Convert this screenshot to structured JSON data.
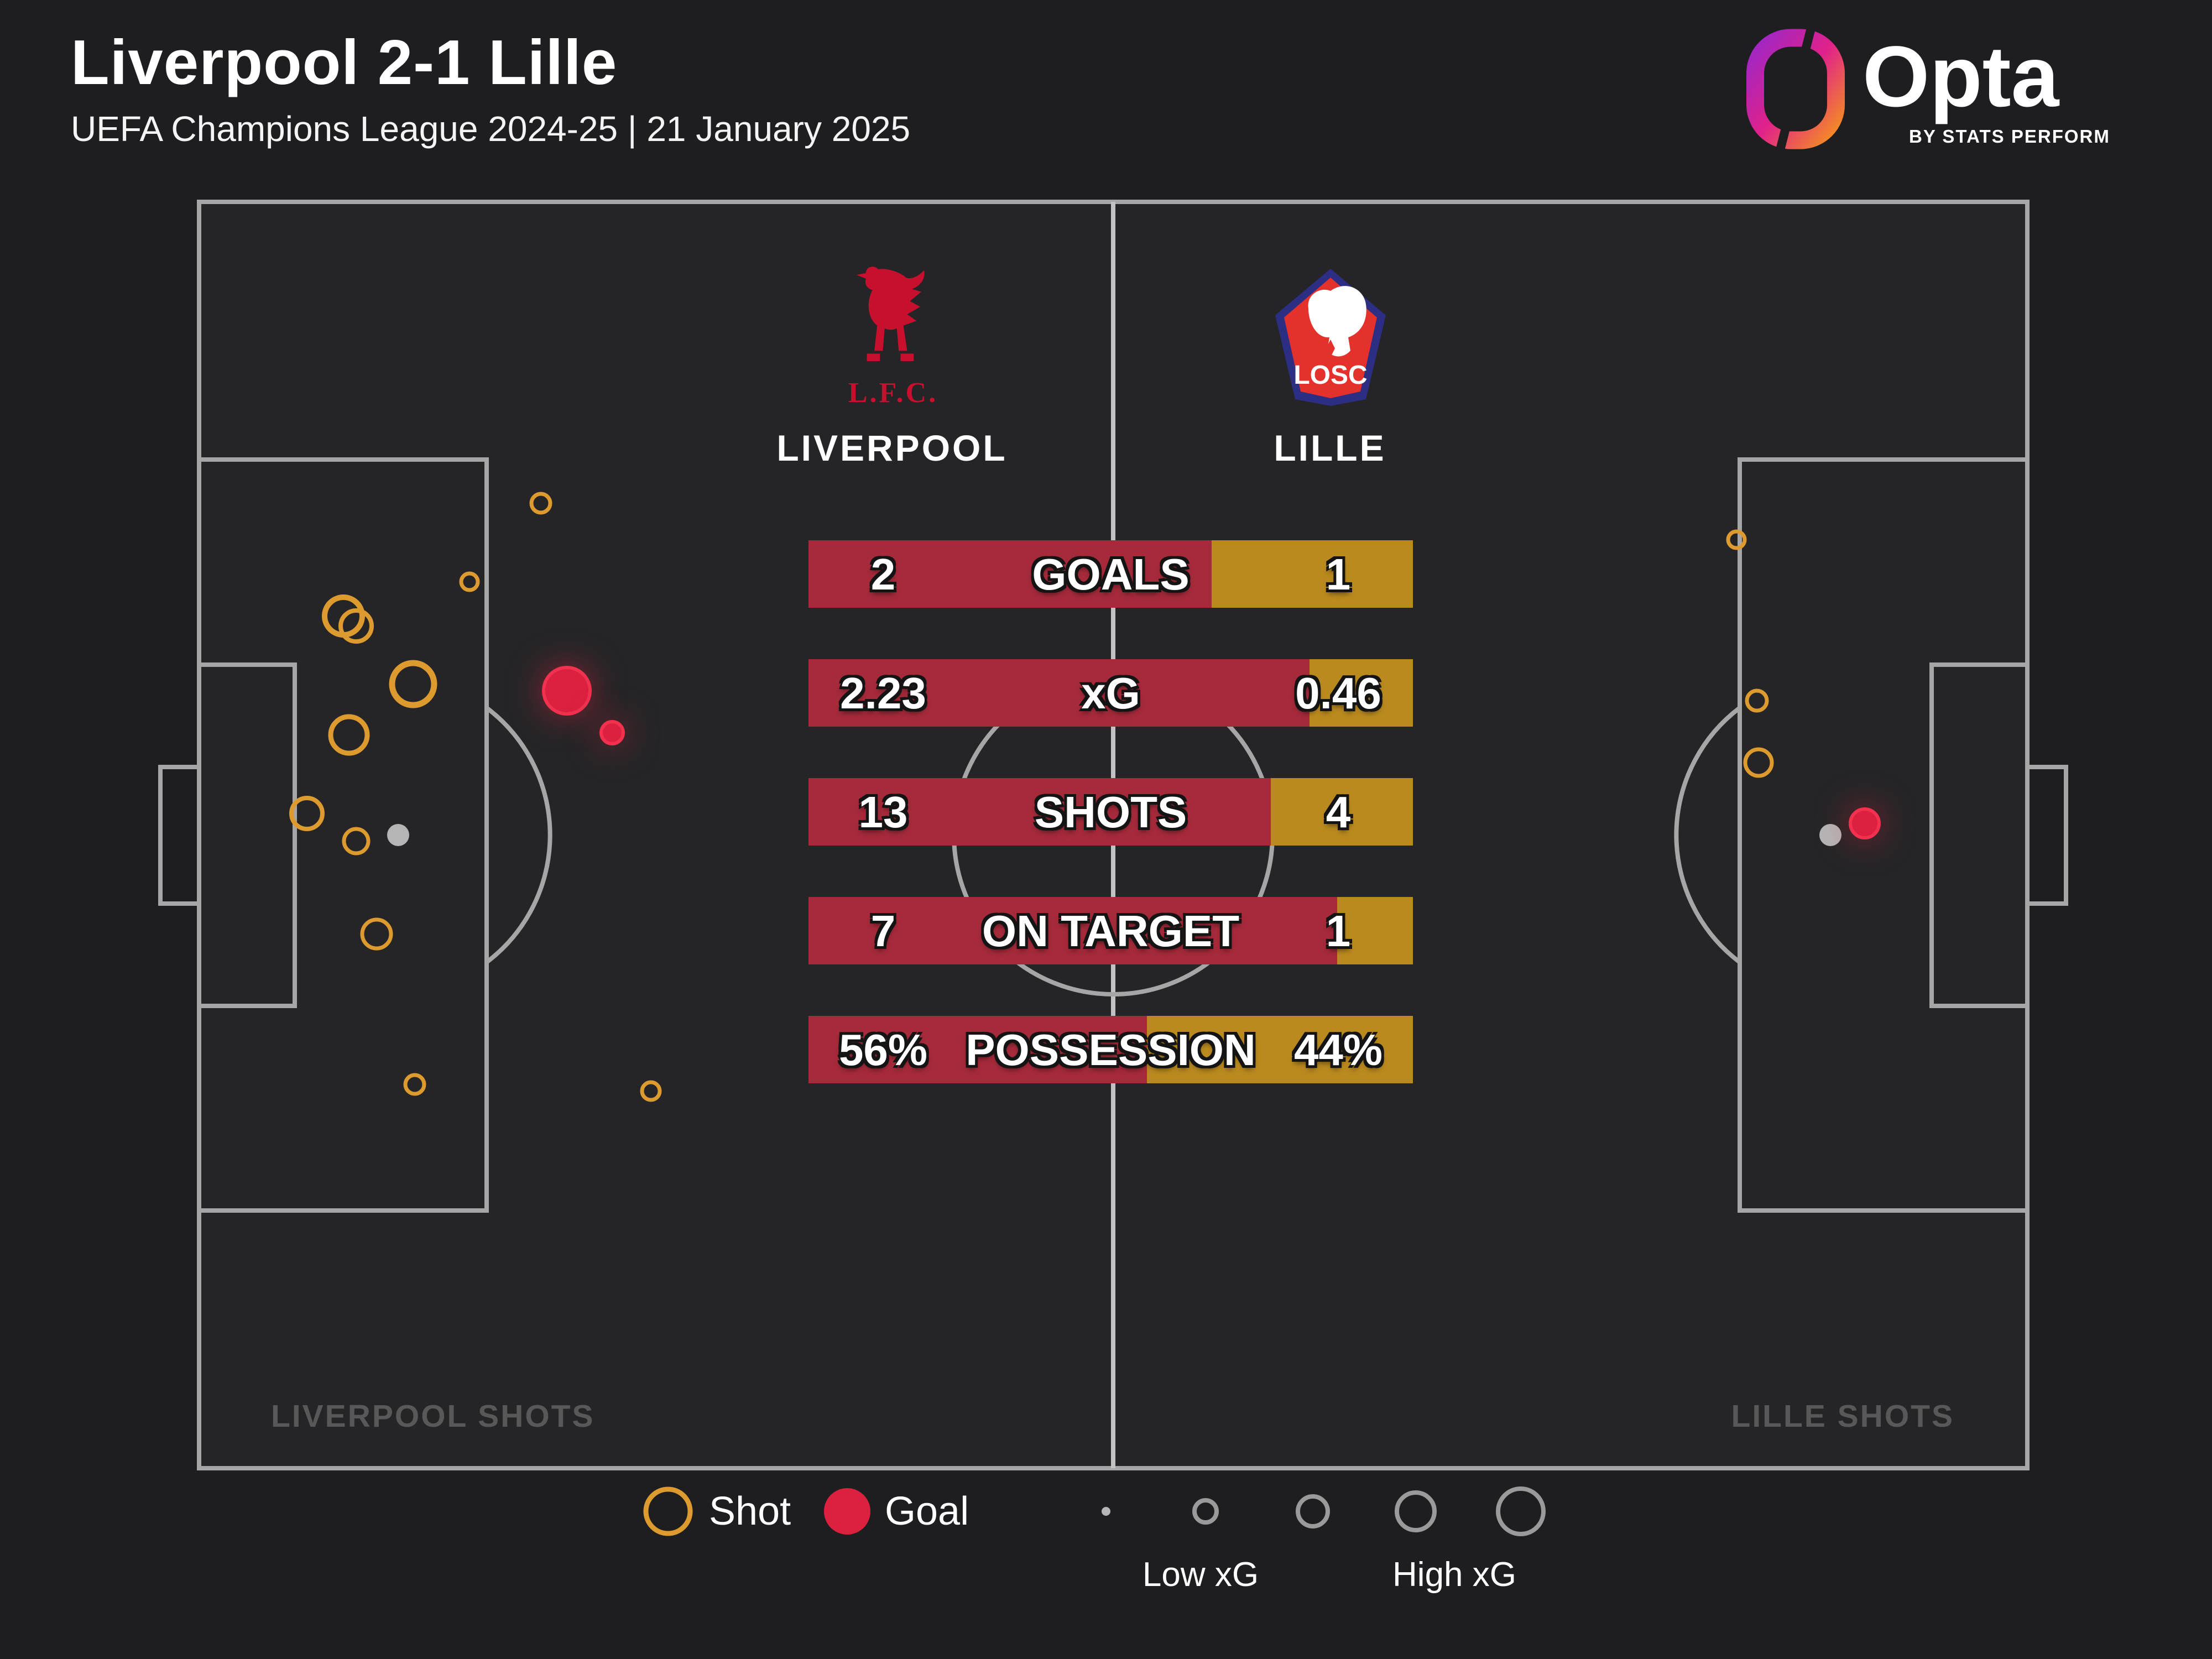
{
  "header": {
    "title": "Liverpool 2-1 Lille",
    "subtitle": "UEFA Champions League 2024-25 | 21 January 2025"
  },
  "brand": {
    "name": "Opta",
    "byline": "BY STATS PERFORM"
  },
  "teams": {
    "home": {
      "name": "LIVERPOOL",
      "crest_caption": "L.F.C."
    },
    "away": {
      "name": "LILLE",
      "crest_caption": "LOSC"
    }
  },
  "pitch_labels": {
    "left": "LIVERPOOL SHOTS",
    "right": "LILLE SHOTS"
  },
  "legend": {
    "shot_label": "Shot",
    "goal_label": "Goal",
    "low_label": "Low xG",
    "high_label": "High xG",
    "scale_radii": [
      8,
      20,
      27,
      34,
      41
    ]
  },
  "colors": {
    "home_bar": "#A52A3A",
    "away_bar": "#BA8A1E",
    "shot_ring": "#DD9B2F",
    "goal_fill": "#DC2140",
    "goal_rim": "#F1314E",
    "pitch_line": "#A6A6A6",
    "halfway_line": "#C2C2C2",
    "penalty_spot": "#B5B5B5",
    "legend_ring": "#9A9A9A",
    "muted_label": "#585858",
    "lfc_red": "#C8102E",
    "losc_red": "#E4312B",
    "losc_navy": "#2B2E83"
  },
  "chart_data": {
    "type": "shot-map",
    "title": "Liverpool 2-1 Lille",
    "competition": "UEFA Champions League 2024-25",
    "date": "21 January 2025",
    "teams": [
      "Liverpool",
      "Lille"
    ],
    "stats": [
      {
        "label": "GOALS",
        "home": "2",
        "away": "1",
        "home_value": 2,
        "away_value": 1
      },
      {
        "label": "xG",
        "home": "2.23",
        "away": "0.46",
        "home_value": 2.23,
        "away_value": 0.46
      },
      {
        "label": "SHOTS",
        "home": "13",
        "away": "4",
        "home_value": 13,
        "away_value": 4
      },
      {
        "label": "ON TARGET",
        "home": "7",
        "away": "1",
        "home_value": 7,
        "away_value": 1
      },
      {
        "label": "POSSESSION",
        "home": "56%",
        "away": "44%",
        "home_value": 56,
        "away_value": 44
      }
    ],
    "shots": {
      "liverpool": [
        {
          "x": 0.187,
          "y": 0.238,
          "r": 17,
          "goal": false
        },
        {
          "x": 0.148,
          "y": 0.3,
          "r": 15,
          "goal": false
        },
        {
          "x": 0.079,
          "y": 0.327,
          "r": 34,
          "goal": false
        },
        {
          "x": 0.086,
          "y": 0.335,
          "r": 28,
          "goal": false
        },
        {
          "x": 0.117,
          "y": 0.381,
          "r": 38,
          "goal": false
        },
        {
          "x": 0.082,
          "y": 0.421,
          "r": 33,
          "goal": false
        },
        {
          "x": 0.059,
          "y": 0.483,
          "r": 28,
          "goal": false
        },
        {
          "x": 0.086,
          "y": 0.505,
          "r": 22,
          "goal": false
        },
        {
          "x": 0.097,
          "y": 0.578,
          "r": 26,
          "goal": false
        },
        {
          "x": 0.118,
          "y": 0.697,
          "r": 17,
          "goal": false
        },
        {
          "x": 0.247,
          "y": 0.702,
          "r": 16,
          "goal": false
        },
        {
          "x": 0.201,
          "y": 0.386,
          "r": 42,
          "goal": true
        },
        {
          "x": 0.226,
          "y": 0.419,
          "r": 20,
          "goal": true
        }
      ],
      "lille": [
        {
          "x": 0.841,
          "y": 0.267,
          "r": 15,
          "goal": false
        },
        {
          "x": 0.852,
          "y": 0.394,
          "r": 18,
          "goal": false
        },
        {
          "x": 0.853,
          "y": 0.443,
          "r": 24,
          "goal": false
        },
        {
          "x": 0.911,
          "y": 0.491,
          "r": 26,
          "goal": true
        }
      ]
    }
  }
}
